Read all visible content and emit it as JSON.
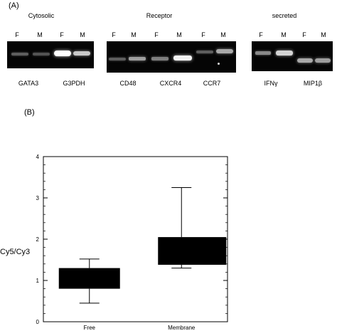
{
  "panel_a": {
    "label": "(A)",
    "groups": [
      {
        "title": "Cytosolic",
        "lanes": [
          "F",
          "M",
          "F",
          "M"
        ],
        "genes": [
          "GATA3",
          "G3PDH"
        ]
      },
      {
        "title": "Receptor",
        "lanes": [
          "F",
          "M",
          "F",
          "M",
          "F",
          "M"
        ],
        "genes": [
          "CD48",
          "CXCR4",
          "CCR7"
        ]
      },
      {
        "title": "secreted",
        "lanes": [
          "F",
          "M",
          "F",
          "M"
        ],
        "genes": [
          "IFNγ",
          "MIP1β"
        ]
      }
    ],
    "band_intensities": {
      "GATA3": [
        0.25,
        0.2
      ],
      "G3PDH": [
        1.0,
        0.75
      ],
      "CD48": [
        0.25,
        0.55
      ],
      "CXCR4": [
        0.4,
        0.95
      ],
      "CCR7": [
        0.25,
        0.6
      ],
      "IFNγ": [
        0.45,
        0.8
      ],
      "MIP1β": [
        0.6,
        0.55
      ]
    }
  },
  "panel_b": {
    "label": "(B)",
    "chart_data": {
      "type": "box",
      "categories": [
        "Free",
        "Membrane"
      ],
      "ylabel": "Cy5/Cy3",
      "ylim": [
        0,
        4
      ],
      "yticks": [
        "0",
        "1",
        "2",
        "3",
        "4"
      ],
      "boxes": [
        {
          "category": "Free",
          "whisker_low": 0.45,
          "q1": 0.8,
          "q3": 1.3,
          "whisker_high": 1.52
        },
        {
          "category": "Membrane",
          "whisker_low": 1.3,
          "q1": 1.38,
          "q3": 2.05,
          "whisker_high": 3.25
        }
      ]
    }
  }
}
